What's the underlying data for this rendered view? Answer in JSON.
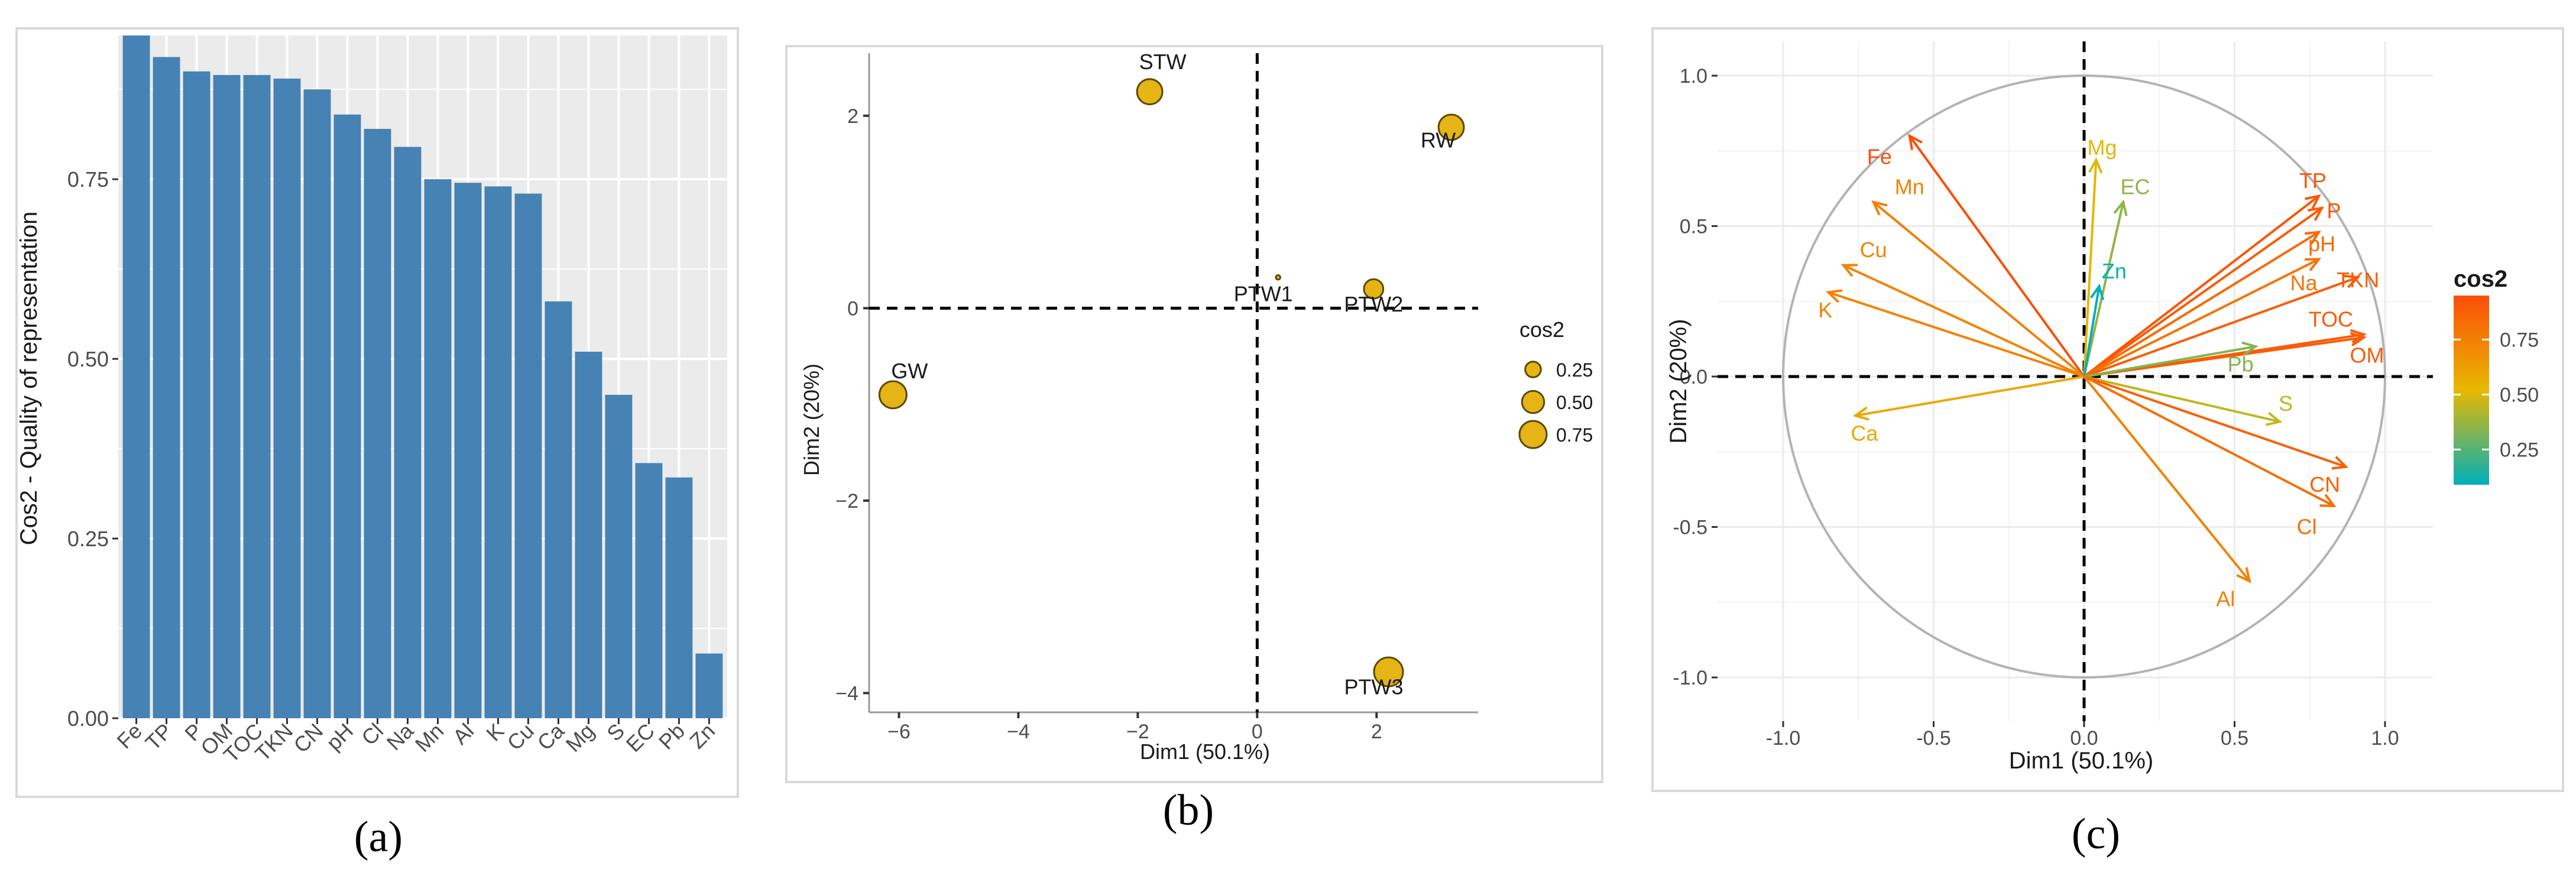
{
  "captions": {
    "a": "(a)",
    "b": "(b)",
    "c": "(c)"
  },
  "colors": {
    "bar": "#4682B4",
    "panel_bg": "#ebebeb",
    "grid": "#ffffff",
    "point": "#E6B415",
    "circle": "#b3b3b3"
  },
  "chart_data": [
    {
      "type": "bar",
      "title": "",
      "xlabel": "",
      "ylabel": "Cos2 - Quality of representation",
      "ylim": [
        0,
        0.95
      ],
      "yticks": [
        0.0,
        0.25,
        0.5,
        0.75
      ],
      "ytick_labels": [
        "0.00",
        "0.25",
        "0.50",
        "0.75"
      ],
      "categories": [
        "Fe",
        "TP",
        "P",
        "OM",
        "TOC",
        "TKN",
        "CN",
        "pH",
        "Cl",
        "Na",
        "Mn",
        "Al",
        "K",
        "Cu",
        "Ca",
        "Mg",
        "S",
        "EC",
        "Pb",
        "Zn"
      ],
      "values": [
        0.95,
        0.92,
        0.9,
        0.895,
        0.895,
        0.89,
        0.875,
        0.84,
        0.82,
        0.795,
        0.75,
        0.745,
        0.74,
        0.73,
        0.58,
        0.51,
        0.45,
        0.355,
        0.335,
        0.09
      ],
      "grid": true
    },
    {
      "type": "scatter",
      "title": "",
      "xlabel": "Dim1 (50.1%)",
      "ylabel": "Dim2 (20%)",
      "xlim": [
        -6.5,
        3.7
      ],
      "ylim": [
        -4.2,
        2.65
      ],
      "xticks": [
        -6,
        -4,
        -2,
        0,
        2
      ],
      "yticks": [
        -4,
        -2,
        0,
        2
      ],
      "grid": false,
      "points": [
        {
          "label": "STW",
          "x": -1.8,
          "y": 2.25,
          "cos2": 0.65
        },
        {
          "label": "RW",
          "x": 3.25,
          "y": 1.88,
          "cos2": 0.65
        },
        {
          "label": "PTW1",
          "x": 0.35,
          "y": 0.32,
          "cos2": 0.02
        },
        {
          "label": "PTW2",
          "x": 1.95,
          "y": 0.2,
          "cos2": 0.38
        },
        {
          "label": "GW",
          "x": -6.1,
          "y": -0.9,
          "cos2": 0.75
        },
        {
          "label": "PTW3",
          "x": 2.2,
          "y": -3.78,
          "cos2": 0.85
        }
      ],
      "legend": {
        "title": "cos2",
        "entries": [
          {
            "label": "0.25",
            "value": 0.25
          },
          {
            "label": "0.50",
            "value": 0.5
          },
          {
            "label": "0.75",
            "value": 0.75
          }
        ],
        "placement": "right"
      }
    },
    {
      "type": "scatter",
      "subtype": "correlation-circle",
      "title": "",
      "xlabel": "Dim1 (50.1%)",
      "ylabel": "Dim2 (20%)",
      "xlim": [
        -1.1,
        1.1
      ],
      "ylim": [
        -1.1,
        1.1
      ],
      "xticks": [
        -1.0,
        -0.5,
        0.0,
        0.5,
        1.0
      ],
      "xtick_labels": [
        "-1.0",
        "-0.5",
        "0.0",
        "0.5",
        "1.0"
      ],
      "yticks": [
        -1.0,
        -0.5,
        0.0,
        0.5,
        1.0
      ],
      "ytick_labels": [
        "-1.0",
        "-0.5",
        "0.0",
        "0.5",
        "1.0"
      ],
      "grid": true,
      "vectors": [
        {
          "label": "Fe",
          "x": -0.58,
          "y": 0.8,
          "cos2": 0.95
        },
        {
          "label": "Mn",
          "x": -0.7,
          "y": 0.58,
          "cos2": 0.75
        },
        {
          "label": "Cu",
          "x": -0.8,
          "y": 0.37,
          "cos2": 0.73
        },
        {
          "label": "K",
          "x": -0.85,
          "y": 0.28,
          "cos2": 0.74
        },
        {
          "label": "Ca",
          "x": -0.76,
          "y": -0.13,
          "cos2": 0.58
        },
        {
          "label": "Mg",
          "x": 0.04,
          "y": 0.72,
          "cos2": 0.51
        },
        {
          "label": "EC",
          "x": 0.13,
          "y": 0.58,
          "cos2": 0.355
        },
        {
          "label": "Zn",
          "x": 0.05,
          "y": 0.3,
          "cos2": 0.09
        },
        {
          "label": "TP",
          "x": 0.78,
          "y": 0.6,
          "cos2": 0.92
        },
        {
          "label": "P",
          "x": 0.79,
          "y": 0.56,
          "cos2": 0.9
        },
        {
          "label": "pH",
          "x": 0.78,
          "y": 0.48,
          "cos2": 0.84
        },
        {
          "label": "Na",
          "x": 0.78,
          "y": 0.39,
          "cos2": 0.795
        },
        {
          "label": "TKN",
          "x": 0.91,
          "y": 0.33,
          "cos2": 0.89
        },
        {
          "label": "TOC",
          "x": 0.93,
          "y": 0.14,
          "cos2": 0.895
        },
        {
          "label": "OM",
          "x": 0.93,
          "y": 0.13,
          "cos2": 0.895
        },
        {
          "label": "Pb",
          "x": 0.57,
          "y": 0.1,
          "cos2": 0.335
        },
        {
          "label": "S",
          "x": 0.65,
          "y": -0.15,
          "cos2": 0.45
        },
        {
          "label": "CN",
          "x": 0.87,
          "y": -0.3,
          "cos2": 0.875
        },
        {
          "label": "Cl",
          "x": 0.83,
          "y": -0.43,
          "cos2": 0.82
        },
        {
          "label": "Al",
          "x": 0.55,
          "y": -0.68,
          "cos2": 0.745
        }
      ],
      "legend": {
        "title": "cos2",
        "ticks": [
          {
            "label": "0.75",
            "value": 0.75
          },
          {
            "label": "0.50",
            "value": 0.5
          },
          {
            "label": "0.25",
            "value": 0.25
          }
        ],
        "range": [
          0.09,
          0.95
        ],
        "placement": "right"
      }
    }
  ]
}
